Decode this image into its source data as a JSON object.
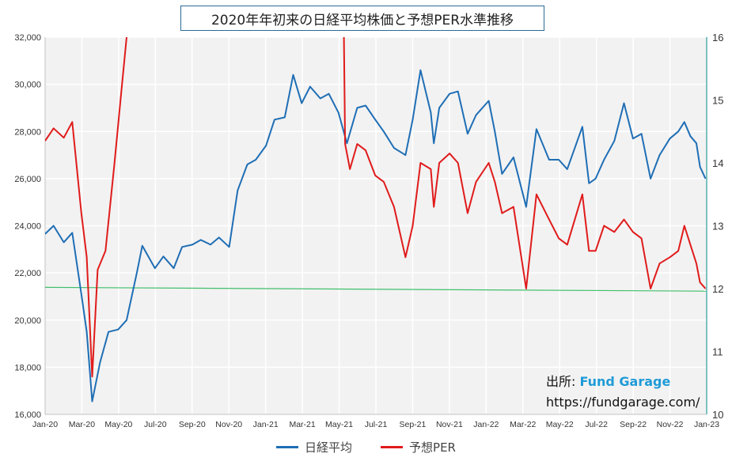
{
  "chart_data": {
    "type": "line",
    "title": "2020年年初来の日経平均株価と予想PER水準推移",
    "x_tick_labels": [
      "Jan-20",
      "Mar-20",
      "May-20",
      "Jul-20",
      "Sep-20",
      "Nov-20",
      "Jan-21",
      "Mar-21",
      "May-21",
      "Jul-21",
      "Sep-21",
      "Nov-21",
      "Jan-22",
      "Mar-22",
      "May-22",
      "Jul-22",
      "Sep-22",
      "Nov-22",
      "Jan-23"
    ],
    "x_range": [
      "2020-01-01",
      "2023-01-01"
    ],
    "y_left": {
      "range": [
        16000,
        32000
      ],
      "tick_labels": [
        "16,000",
        "18,000",
        "20,000",
        "22,000",
        "24,000",
        "26,000",
        "28,000",
        "30,000",
        "32,000"
      ]
    },
    "y_right": {
      "range": [
        10,
        16
      ],
      "tick_labels": [
        "10",
        "11",
        "12",
        "13",
        "14",
        "15",
        "16"
      ]
    },
    "grid": true,
    "legend_position": "bottom",
    "series": [
      {
        "name": "日経平均",
        "axis": "left",
        "color": "#1f6eb5",
        "points": [
          [
            "2020-01-01",
            23650
          ],
          [
            "2020-01-15",
            24000
          ],
          [
            "2020-02-01",
            23300
          ],
          [
            "2020-02-15",
            23700
          ],
          [
            "2020-03-01",
            21100
          ],
          [
            "2020-03-10",
            19500
          ],
          [
            "2020-03-19",
            16550
          ],
          [
            "2020-04-01",
            18200
          ],
          [
            "2020-04-15",
            19500
          ],
          [
            "2020-05-01",
            19600
          ],
          [
            "2020-05-15",
            20000
          ],
          [
            "2020-06-01",
            22000
          ],
          [
            "2020-06-10",
            23150
          ],
          [
            "2020-07-01",
            22200
          ],
          [
            "2020-07-15",
            22700
          ],
          [
            "2020-08-01",
            22200
          ],
          [
            "2020-08-15",
            23100
          ],
          [
            "2020-09-01",
            23200
          ],
          [
            "2020-09-15",
            23400
          ],
          [
            "2020-10-01",
            23200
          ],
          [
            "2020-10-15",
            23500
          ],
          [
            "2020-11-01",
            23100
          ],
          [
            "2020-11-15",
            25500
          ],
          [
            "2020-12-01",
            26600
          ],
          [
            "2020-12-15",
            26800
          ],
          [
            "2021-01-01",
            27400
          ],
          [
            "2021-01-15",
            28500
          ],
          [
            "2021-02-01",
            28600
          ],
          [
            "2021-02-15",
            30400
          ],
          [
            "2021-03-01",
            29200
          ],
          [
            "2021-03-15",
            29900
          ],
          [
            "2021-04-01",
            29400
          ],
          [
            "2021-04-15",
            29600
          ],
          [
            "2021-05-01",
            28800
          ],
          [
            "2021-05-15",
            27500
          ],
          [
            "2021-06-01",
            29000
          ],
          [
            "2021-06-15",
            29100
          ],
          [
            "2021-07-01",
            28500
          ],
          [
            "2021-07-15",
            28000
          ],
          [
            "2021-08-01",
            27300
          ],
          [
            "2021-08-20",
            27000
          ],
          [
            "2021-09-01",
            28500
          ],
          [
            "2021-09-14",
            30600
          ],
          [
            "2021-10-01",
            28800
          ],
          [
            "2021-10-06",
            27500
          ],
          [
            "2021-10-15",
            29000
          ],
          [
            "2021-11-01",
            29600
          ],
          [
            "2021-11-15",
            29700
          ],
          [
            "2021-12-01",
            27900
          ],
          [
            "2021-12-15",
            28700
          ],
          [
            "2022-01-05",
            29300
          ],
          [
            "2022-01-15",
            28000
          ],
          [
            "2022-01-27",
            26200
          ],
          [
            "2022-02-15",
            26900
          ],
          [
            "2022-03-08",
            24800
          ],
          [
            "2022-03-25",
            28100
          ],
          [
            "2022-04-15",
            26800
          ],
          [
            "2022-05-01",
            26800
          ],
          [
            "2022-05-15",
            26400
          ],
          [
            "2022-06-09",
            28200
          ],
          [
            "2022-06-20",
            25800
          ],
          [
            "2022-07-01",
            26000
          ],
          [
            "2022-07-15",
            26800
          ],
          [
            "2022-08-01",
            27600
          ],
          [
            "2022-08-17",
            29200
          ],
          [
            "2022-09-01",
            27700
          ],
          [
            "2022-09-15",
            27900
          ],
          [
            "2022-09-30",
            26000
          ],
          [
            "2022-10-15",
            27000
          ],
          [
            "2022-11-01",
            27700
          ],
          [
            "2022-11-15",
            28000
          ],
          [
            "2022-11-25",
            28400
          ],
          [
            "2022-12-05",
            27800
          ],
          [
            "2022-12-15",
            27500
          ],
          [
            "2022-12-21",
            26500
          ],
          [
            "2022-12-30",
            26000
          ]
        ]
      },
      {
        "name": "予想PER",
        "axis": "right",
        "color": "#e01b1b",
        "points": [
          [
            "2020-01-01",
            14.35
          ],
          [
            "2020-01-15",
            14.55
          ],
          [
            "2020-02-01",
            14.4
          ],
          [
            "2020-02-15",
            14.65
          ],
          [
            "2020-03-01",
            13.2
          ],
          [
            "2020-03-10",
            12.5
          ],
          [
            "2020-03-19",
            10.6
          ],
          [
            "2020-03-28",
            12.3
          ],
          [
            "2020-04-10",
            12.6
          ],
          [
            "2020-04-25",
            14.0
          ],
          [
            "2020-05-05",
            15.0
          ],
          [
            "2020-05-15",
            16.0
          ]
        ],
        "points_continued": [
          [
            "2021-05-10",
            16.0
          ],
          [
            "2021-05-12",
            14.3
          ],
          [
            "2021-05-20",
            13.9
          ],
          [
            "2021-06-01",
            14.3
          ],
          [
            "2021-06-15",
            14.2
          ],
          [
            "2021-07-01",
            13.8
          ],
          [
            "2021-07-15",
            13.7
          ],
          [
            "2021-08-01",
            13.3
          ],
          [
            "2021-08-20",
            12.5
          ],
          [
            "2021-09-01",
            13.0
          ],
          [
            "2021-09-14",
            14.0
          ],
          [
            "2021-10-01",
            13.9
          ],
          [
            "2021-10-06",
            13.3
          ],
          [
            "2021-10-15",
            14.0
          ],
          [
            "2021-11-01",
            14.15
          ],
          [
            "2021-11-15",
            14.0
          ],
          [
            "2021-12-01",
            13.2
          ],
          [
            "2021-12-15",
            13.7
          ],
          [
            "2022-01-05",
            14.0
          ],
          [
            "2022-01-15",
            13.7
          ],
          [
            "2022-01-27",
            13.2
          ],
          [
            "2022-02-15",
            13.3
          ],
          [
            "2022-03-08",
            12.0
          ],
          [
            "2022-03-25",
            13.5
          ],
          [
            "2022-04-15",
            13.1
          ],
          [
            "2022-05-01",
            12.8
          ],
          [
            "2022-05-15",
            12.7
          ],
          [
            "2022-06-09",
            13.5
          ],
          [
            "2022-06-20",
            12.6
          ],
          [
            "2022-07-01",
            12.6
          ],
          [
            "2022-07-15",
            13.0
          ],
          [
            "2022-08-01",
            12.9
          ],
          [
            "2022-08-17",
            13.1
          ],
          [
            "2022-09-01",
            12.9
          ],
          [
            "2022-09-15",
            12.8
          ],
          [
            "2022-09-30",
            12.0
          ],
          [
            "2022-10-15",
            12.4
          ],
          [
            "2022-11-01",
            12.5
          ],
          [
            "2022-11-15",
            12.6
          ],
          [
            "2022-11-25",
            13.0
          ],
          [
            "2022-12-05",
            12.7
          ],
          [
            "2022-12-15",
            12.4
          ],
          [
            "2022-12-21",
            12.1
          ],
          [
            "2022-12-30",
            12.0
          ]
        ]
      },
      {
        "name": "",
        "axis": "right",
        "color": "#3fbf6a",
        "points": [
          [
            "2020-01-01",
            12.02
          ],
          [
            "2023-01-01",
            11.96
          ]
        ]
      }
    ]
  },
  "source": {
    "label": "出所: ",
    "brand": "Fund Garage",
    "url": "https://fundgarage.com/"
  },
  "legend": {
    "items": [
      {
        "label": "日経平均",
        "color": "#1f6eb5"
      },
      {
        "label": "予想PER",
        "color": "#e01b1b"
      }
    ]
  }
}
